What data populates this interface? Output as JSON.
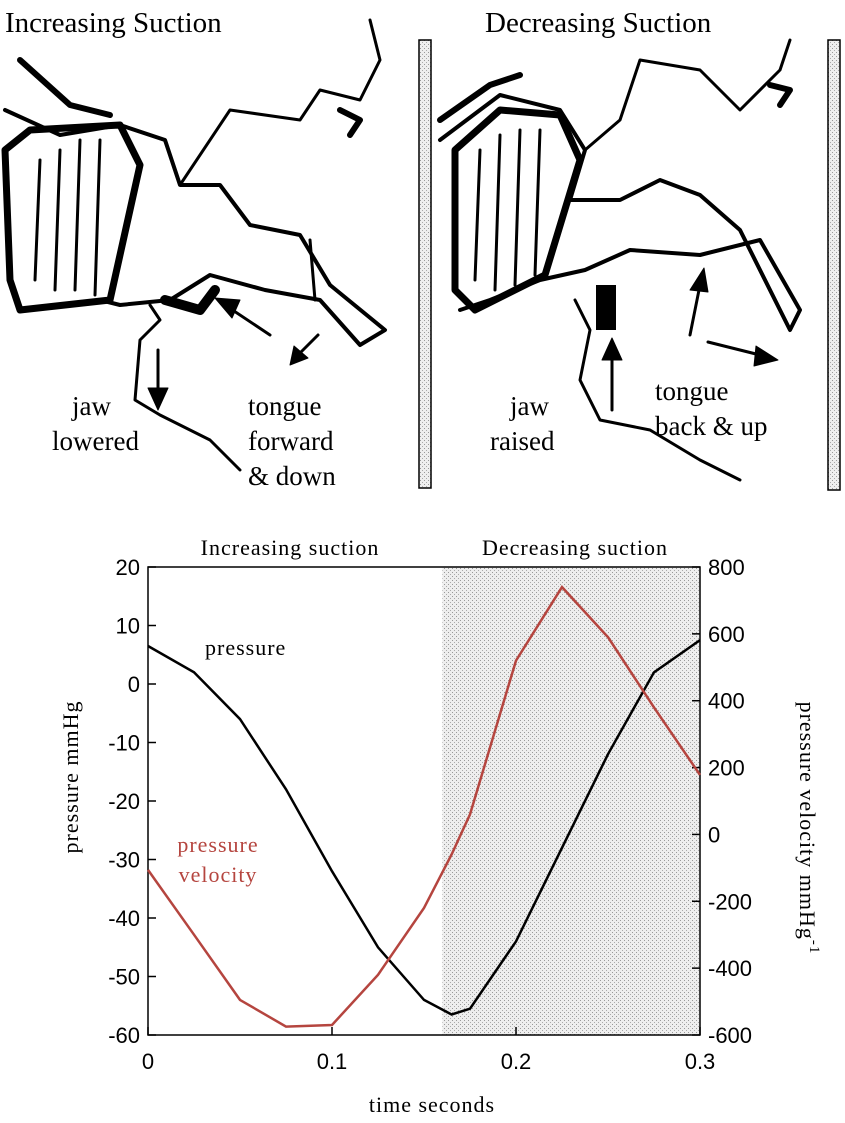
{
  "panels": [
    {
      "title": "Increasing Suction",
      "labels": [
        [
          "jaw",
          "lowered"
        ],
        [
          "tongue",
          "forward",
          "& down"
        ]
      ]
    },
    {
      "title": "Decreasing Suction",
      "labels": [
        [
          "jaw",
          "raised"
        ],
        [
          "tongue",
          "back & up"
        ]
      ]
    }
  ],
  "chart_data": {
    "type": "line",
    "xlabel": "time  seconds",
    "ylabel": "pressure  mmHg",
    "y2label": "pressure  velocity  mmHg",
    "y2label_superscript": "-1",
    "region_labels": [
      "Increasing   suction",
      "Decreasing   suction"
    ],
    "shaded_region": [
      0.16,
      0.3
    ],
    "x": [
      0,
      0.025,
      0.05,
      0.075,
      0.1,
      0.125,
      0.15,
      0.165,
      0.175,
      0.2,
      0.225,
      0.25,
      0.275,
      0.3
    ],
    "series": [
      {
        "name": "pressure",
        "color": "#000000",
        "values": [
          6.5,
          2,
          -6,
          -18,
          -32,
          -45,
          -54,
          -56.5,
          -55.5,
          -44,
          -28,
          -12,
          2,
          7.5
        ]
      },
      {
        "name": "pressure velocity",
        "color": "#b5453f",
        "axis": "y2",
        "values": [
          -106,
          -300,
          -495,
          -575,
          -570,
          -420,
          -220,
          -60,
          60,
          520,
          740,
          590,
          380,
          178
        ]
      }
    ],
    "xlim": [
      0,
      0.3
    ],
    "xticks": [
      0,
      0.1,
      0.2,
      0.3
    ],
    "ylim": [
      -60,
      20
    ],
    "yticks": [
      -60,
      -50,
      -40,
      -30,
      -20,
      -10,
      0,
      10,
      20
    ],
    "y2lim": [
      -600,
      800
    ],
    "y2ticks": [
      -600,
      -400,
      -200,
      0,
      200,
      400,
      600,
      800
    ]
  }
}
